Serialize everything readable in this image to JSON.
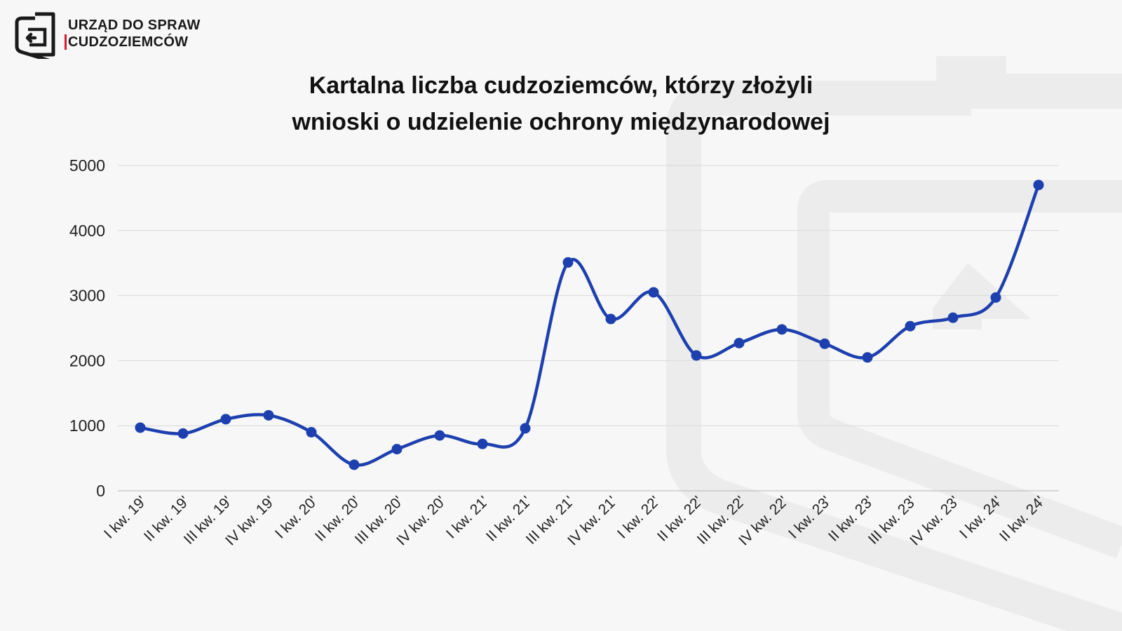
{
  "logo": {
    "line1": "URZĄD DO SPRAW",
    "line2": "CUDZOZIEMCÓW"
  },
  "chart_data": {
    "type": "line",
    "title_line1": "Kartalna liczba cudzoziemców, którzy złożyli",
    "title_line2": "wnioski o udzielenie ochrony międzynarodowej",
    "categories": [
      "I kw. 19'",
      "II kw. 19'",
      "III kw. 19'",
      "IV kw. 19'",
      "I kw. 20'",
      "II kw. 20'",
      "III kw. 20'",
      "IV kw. 20'",
      "I kw. 21'",
      "II kw. 21'",
      "III kw. 21'",
      "IV kw. 21'",
      "I kw. 22'",
      "II kw. 22'",
      "III kw. 22'",
      "IV kw. 22'",
      "I kw. 23'",
      "II kw. 23'",
      "III kw. 23'",
      "IV kw. 23'",
      "I kw. 24'",
      "II kw. 24'"
    ],
    "values": [
      970,
      880,
      1100,
      1160,
      900,
      400,
      640,
      850,
      720,
      960,
      3510,
      2640,
      3050,
      2080,
      2270,
      2480,
      2260,
      2050,
      2530,
      2660,
      2970,
      4700
    ],
    "ylim": [
      0,
      5000
    ],
    "yticks": [
      0,
      1000,
      2000,
      3000,
      4000,
      5000
    ],
    "grid": true,
    "color": "#1e40af"
  }
}
